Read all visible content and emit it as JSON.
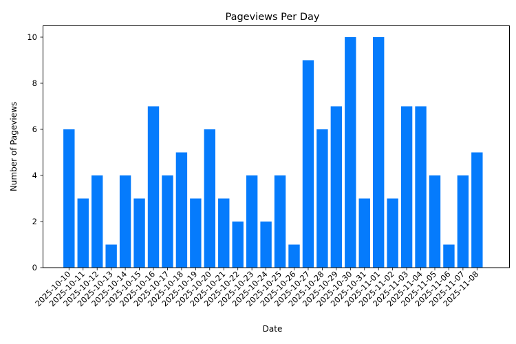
{
  "chart_data": {
    "type": "bar",
    "title": "Pageviews Per Day",
    "xlabel": "Date",
    "ylabel": "Number of Pageviews",
    "ylim": [
      0,
      10.5
    ],
    "yticks": [
      0,
      2,
      4,
      6,
      8,
      10
    ],
    "grid": false,
    "legend": null,
    "bar_color": "#057bfc",
    "categories": [
      "2025-10-10",
      "2025-10-11",
      "2025-10-12",
      "2025-10-13",
      "2025-10-14",
      "2025-10-15",
      "2025-10-16",
      "2025-10-17",
      "2025-10-18",
      "2025-10-19",
      "2025-10-20",
      "2025-10-21",
      "2025-10-22",
      "2025-10-23",
      "2025-10-24",
      "2025-10-25",
      "2025-10-26",
      "2025-10-27",
      "2025-10-28",
      "2025-10-29",
      "2025-10-30",
      "2025-10-31",
      "2025-11-01",
      "2025-11-02",
      "2025-11-03",
      "2025-11-04",
      "2025-11-05",
      "2025-11-06",
      "2025-11-07",
      "2025-11-08"
    ],
    "values": [
      6,
      3,
      4,
      1,
      4,
      3,
      7,
      4,
      5,
      3,
      6,
      3,
      2,
      4,
      2,
      4,
      1,
      9,
      6,
      7,
      10,
      3,
      10,
      3,
      7,
      7,
      4,
      1,
      4,
      5
    ]
  }
}
